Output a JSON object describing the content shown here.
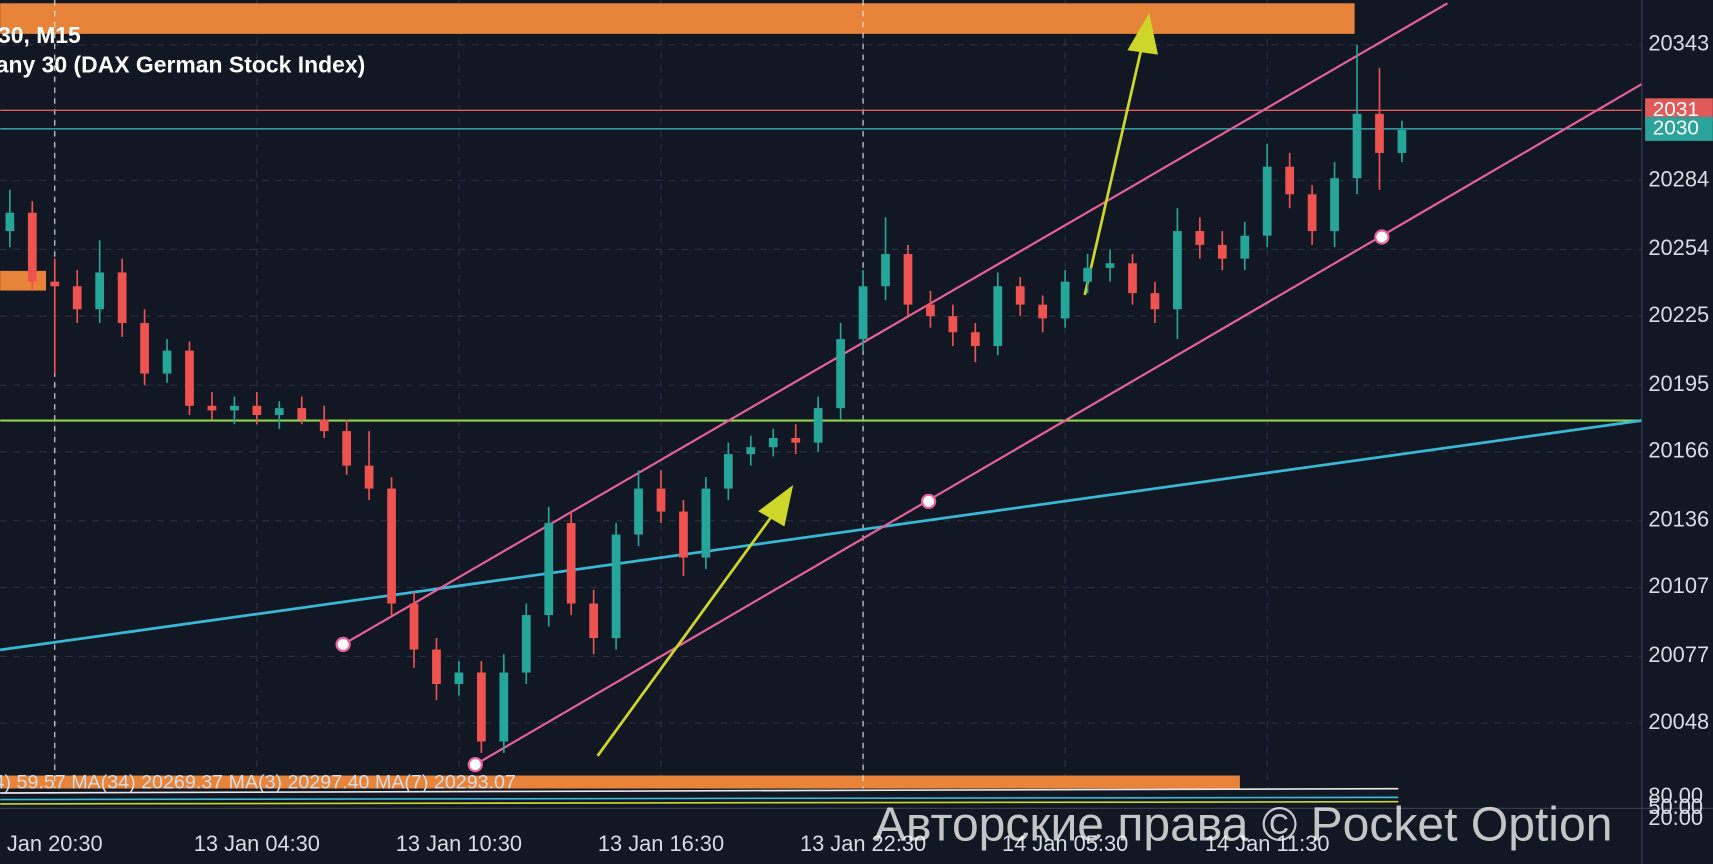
{
  "chart_data": {
    "type": "candlestick",
    "title": "30, M15",
    "subtitle": "any 30 (DAX German Stock Index)",
    "categories": [
      null,
      null,
      "Jan 20:30",
      null,
      null,
      null,
      null,
      null,
      null,
      null,
      null,
      "13 Jan 04:30",
      null,
      null,
      null,
      null,
      null,
      null,
      null,
      null,
      "13 Jan 10:30",
      null,
      null,
      null,
      null,
      null,
      null,
      null,
      null,
      "13 Jan 16:30",
      null,
      null,
      null,
      null,
      null,
      null,
      null,
      null,
      "13 Jan 22:30",
      null,
      null,
      null,
      null,
      null,
      null,
      null,
      null,
      "14 Jan 05:30",
      null,
      null,
      null,
      null,
      null,
      null,
      null,
      null,
      "14 Jan 11:30",
      null,
      null,
      null,
      null,
      null,
      null
    ],
    "open": [
      20262,
      20270,
      20240,
      20238,
      20228,
      20244,
      20222,
      20200,
      20210,
      20186,
      20184,
      20186,
      20182,
      20185,
      20180,
      20175,
      20160,
      20150,
      20100,
      20080,
      20065,
      20070,
      20040,
      20070,
      20095,
      20135,
      20100,
      20085,
      20130,
      20150,
      20140,
      20120,
      20150,
      20165,
      20168,
      20172,
      20170,
      20185,
      20215,
      20238,
      20252,
      20230,
      20225,
      20218,
      20212,
      20238,
      20230,
      20224,
      20240,
      20246,
      20248,
      20235,
      20228,
      20262,
      20256,
      20250,
      20260,
      20290,
      20278,
      20262,
      20285,
      20313,
      20296
    ],
    "high": [
      20280,
      20275,
      20250,
      20245,
      20258,
      20250,
      20228,
      20215,
      20214,
      20192,
      20190,
      20192,
      20188,
      20190,
      20186,
      20180,
      20175,
      20155,
      20105,
      20085,
      20075,
      20075,
      20078,
      20100,
      20142,
      20140,
      20106,
      20135,
      20158,
      20158,
      20145,
      20155,
      20170,
      20173,
      20176,
      20178,
      20190,
      20222,
      20245,
      20268,
      20256,
      20236,
      20230,
      20222,
      20244,
      20242,
      20234,
      20245,
      20252,
      20254,
      20252,
      20240,
      20272,
      20268,
      20262,
      20266,
      20300,
      20296,
      20282,
      20292,
      20343,
      20333,
      20310
    ],
    "low": [
      20255,
      20236,
      20200,
      20222,
      20222,
      20216,
      20195,
      20196,
      20182,
      20180,
      20178,
      20178,
      20176,
      20178,
      20172,
      20156,
      20145,
      20095,
      20072,
      20058,
      20060,
      20035,
      20035,
      20065,
      20090,
      20095,
      20078,
      20080,
      20125,
      20135,
      20112,
      20115,
      20145,
      20160,
      20164,
      20165,
      20166,
      20180,
      20210,
      20232,
      20225,
      20220,
      20212,
      20205,
      20208,
      20225,
      20218,
      20220,
      20235,
      20240,
      20230,
      20222,
      20215,
      20250,
      20245,
      20245,
      20255,
      20272,
      20256,
      20255,
      20278,
      20280,
      20292
    ],
    "close": [
      20270,
      20240,
      20238,
      20228,
      20244,
      20222,
      20200,
      20210,
      20186,
      20184,
      20186,
      20182,
      20185,
      20180,
      20175,
      20160,
      20150,
      20100,
      20080,
      20065,
      20070,
      20040,
      20070,
      20095,
      20135,
      20100,
      20085,
      20130,
      20150,
      20140,
      20120,
      20150,
      20165,
      20168,
      20172,
      20170,
      20185,
      20215,
      20238,
      20252,
      20230,
      20225,
      20218,
      20212,
      20238,
      20230,
      20224,
      20240,
      20246,
      20248,
      20235,
      20228,
      20262,
      20256,
      20250,
      20260,
      20290,
      20278,
      20262,
      20285,
      20313,
      20296,
      20306
    ],
    "up_color": "#26a69a",
    "down_color": "#ef5350",
    "ylim": [
      20019.5,
      20362.5
    ],
    "yticks": [
      20343,
      20284,
      20254,
      20225,
      20195,
      20166,
      20136,
      20107,
      20077,
      20048
    ],
    "grid": true,
    "price_tags": [
      "2031",
      "2030"
    ],
    "indicator_text": "4) 59.57 MA(34) 20269.37 MA(3) 20297.40 MA(7) 20293.07",
    "indicator_ticks": [
      "80.00",
      "50.00",
      "20.00"
    ],
    "watermark": "Авторские права © Pocket Option"
  }
}
